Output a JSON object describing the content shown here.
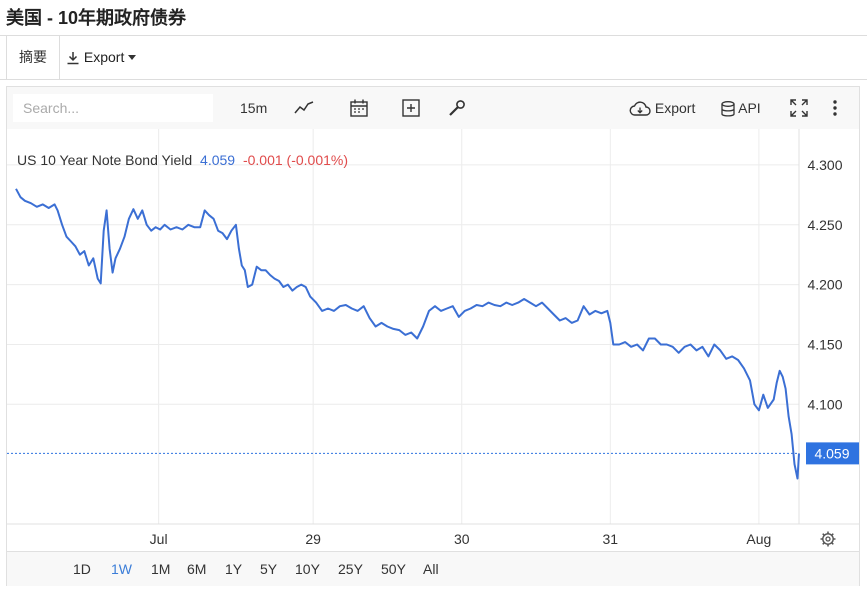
{
  "page": {
    "title": "美国 - 10年期政府债券",
    "tab_summary": "摘要",
    "export_label": "Export"
  },
  "toolbar": {
    "search_placeholder": "Search...",
    "interval": "15m",
    "export_label": "Export",
    "api_label": "API",
    "icons": [
      "line-chart-icon",
      "calendar-icon",
      "plus-box-icon",
      "wrench-icon",
      "cloud-download-icon",
      "database-icon",
      "fullscreen-icon",
      "more-vertical-icon"
    ]
  },
  "legend": {
    "name": "US 10 Year Note Bond Yield",
    "value": "4.059",
    "change": "-0.001 (-0.001%)"
  },
  "colors": {
    "line": "#3b6fd4",
    "value": "#3b6fd4",
    "change": "#e04b4b",
    "price_tag": "#2f73e0"
  },
  "ranges": {
    "items": [
      "1D",
      "1W",
      "1M",
      "6M",
      "1Y",
      "5Y",
      "10Y",
      "25Y",
      "50Y",
      "All"
    ],
    "active": "1W"
  },
  "chart_data": {
    "type": "line",
    "ylim": [
      4.0,
      4.33
    ],
    "yticks": [
      4.3,
      4.25,
      4.2,
      4.15,
      4.1
    ],
    "ytick_labels": [
      "4.300",
      "4.250",
      "4.200",
      "4.150",
      "4.100"
    ],
    "xticks": [
      {
        "label": "Jul",
        "x": 0.96
      },
      {
        "label": "29",
        "x": 2.0
      },
      {
        "label": "30",
        "x": 3.0
      },
      {
        "label": "31",
        "x": 4.0
      },
      {
        "label": "Aug",
        "x": 5.0
      }
    ],
    "xlim": [
      0.0,
      5.27
    ],
    "last_price": 4.059,
    "last_price_label": "4.059",
    "series": [
      {
        "values": [
          [
            0.0,
            4.28
          ],
          [
            0.03,
            4.273
          ],
          [
            0.06,
            4.27
          ],
          [
            0.1,
            4.268
          ],
          [
            0.14,
            4.265
          ],
          [
            0.18,
            4.267
          ],
          [
            0.22,
            4.264
          ],
          [
            0.26,
            4.267
          ],
          [
            0.28,
            4.262
          ],
          [
            0.31,
            4.25
          ],
          [
            0.34,
            4.24
          ],
          [
            0.37,
            4.236
          ],
          [
            0.4,
            4.232
          ],
          [
            0.43,
            4.225
          ],
          [
            0.46,
            4.228
          ],
          [
            0.49,
            4.216
          ],
          [
            0.52,
            4.222
          ],
          [
            0.55,
            4.205
          ],
          [
            0.57,
            4.201
          ],
          [
            0.59,
            4.245
          ],
          [
            0.61,
            4.262
          ],
          [
            0.63,
            4.23
          ],
          [
            0.65,
            4.21
          ],
          [
            0.67,
            4.222
          ],
          [
            0.7,
            4.23
          ],
          [
            0.73,
            4.24
          ],
          [
            0.76,
            4.255
          ],
          [
            0.79,
            4.263
          ],
          [
            0.82,
            4.255
          ],
          [
            0.85,
            4.262
          ],
          [
            0.88,
            4.25
          ],
          [
            0.91,
            4.245
          ],
          [
            0.94,
            4.248
          ],
          [
            0.97,
            4.246
          ],
          [
            1.0,
            4.25
          ],
          [
            1.04,
            4.246
          ],
          [
            1.08,
            4.248
          ],
          [
            1.12,
            4.246
          ],
          [
            1.16,
            4.25
          ],
          [
            1.2,
            4.248
          ],
          [
            1.24,
            4.248
          ],
          [
            1.27,
            4.262
          ],
          [
            1.3,
            4.258
          ],
          [
            1.33,
            4.255
          ],
          [
            1.36,
            4.245
          ],
          [
            1.39,
            4.243
          ],
          [
            1.42,
            4.238
          ],
          [
            1.45,
            4.245
          ],
          [
            1.48,
            4.25
          ],
          [
            1.5,
            4.23
          ],
          [
            1.52,
            4.216
          ],
          [
            1.54,
            4.212
          ],
          [
            1.56,
            4.198
          ],
          [
            1.59,
            4.2
          ],
          [
            1.62,
            4.215
          ],
          [
            1.65,
            4.212
          ],
          [
            1.68,
            4.212
          ],
          [
            1.71,
            4.208
          ],
          [
            1.74,
            4.205
          ],
          [
            1.77,
            4.203
          ],
          [
            1.8,
            4.198
          ],
          [
            1.83,
            4.2
          ],
          [
            1.86,
            4.195
          ],
          [
            1.89,
            4.198
          ],
          [
            1.92,
            4.2
          ],
          [
            1.95,
            4.198
          ],
          [
            1.98,
            4.19
          ],
          [
            2.02,
            4.185
          ],
          [
            2.06,
            4.178
          ],
          [
            2.1,
            4.18
          ],
          [
            2.14,
            4.178
          ],
          [
            2.18,
            4.182
          ],
          [
            2.22,
            4.183
          ],
          [
            2.26,
            4.18
          ],
          [
            2.3,
            4.178
          ],
          [
            2.34,
            4.182
          ],
          [
            2.38,
            4.172
          ],
          [
            2.42,
            4.165
          ],
          [
            2.46,
            4.168
          ],
          [
            2.5,
            4.165
          ],
          [
            2.54,
            4.163
          ],
          [
            2.58,
            4.162
          ],
          [
            2.62,
            4.158
          ],
          [
            2.66,
            4.16
          ],
          [
            2.7,
            4.155
          ],
          [
            2.74,
            4.165
          ],
          [
            2.78,
            4.178
          ],
          [
            2.82,
            4.182
          ],
          [
            2.86,
            4.178
          ],
          [
            2.9,
            4.18
          ],
          [
            2.94,
            4.182
          ],
          [
            2.98,
            4.173
          ],
          [
            3.02,
            4.178
          ],
          [
            3.06,
            4.18
          ],
          [
            3.1,
            4.183
          ],
          [
            3.14,
            4.182
          ],
          [
            3.18,
            4.185
          ],
          [
            3.22,
            4.183
          ],
          [
            3.26,
            4.182
          ],
          [
            3.3,
            4.185
          ],
          [
            3.34,
            4.183
          ],
          [
            3.38,
            4.185
          ],
          [
            3.42,
            4.188
          ],
          [
            3.46,
            4.185
          ],
          [
            3.5,
            4.182
          ],
          [
            3.54,
            4.185
          ],
          [
            3.58,
            4.18
          ],
          [
            3.62,
            4.175
          ],
          [
            3.66,
            4.17
          ],
          [
            3.7,
            4.172
          ],
          [
            3.74,
            4.168
          ],
          [
            3.78,
            4.17
          ],
          [
            3.82,
            4.182
          ],
          [
            3.86,
            4.175
          ],
          [
            3.9,
            4.178
          ],
          [
            3.94,
            4.176
          ],
          [
            3.98,
            4.178
          ],
          [
            4.0,
            4.168
          ],
          [
            4.02,
            4.15
          ],
          [
            4.06,
            4.15
          ],
          [
            4.1,
            4.152
          ],
          [
            4.14,
            4.148
          ],
          [
            4.18,
            4.15
          ],
          [
            4.22,
            4.145
          ],
          [
            4.26,
            4.155
          ],
          [
            4.3,
            4.155
          ],
          [
            4.34,
            4.15
          ],
          [
            4.38,
            4.15
          ],
          [
            4.42,
            4.148
          ],
          [
            4.46,
            4.143
          ],
          [
            4.5,
            4.148
          ],
          [
            4.54,
            4.15
          ],
          [
            4.58,
            4.145
          ],
          [
            4.62,
            4.148
          ],
          [
            4.66,
            4.14
          ],
          [
            4.7,
            4.15
          ],
          [
            4.74,
            4.145
          ],
          [
            4.78,
            4.138
          ],
          [
            4.82,
            4.14
          ],
          [
            4.86,
            4.137
          ],
          [
            4.9,
            4.13
          ],
          [
            4.94,
            4.12
          ],
          [
            4.97,
            4.1
          ],
          [
            5.0,
            4.095
          ],
          [
            5.03,
            4.108
          ],
          [
            5.06,
            4.097
          ],
          [
            5.1,
            4.104
          ],
          [
            5.12,
            4.118
          ],
          [
            5.14,
            4.128
          ],
          [
            5.16,
            4.123
          ],
          [
            5.18,
            4.113
          ],
          [
            5.2,
            4.09
          ],
          [
            5.22,
            4.075
          ],
          [
            5.24,
            4.05
          ],
          [
            5.26,
            4.038
          ],
          [
            5.27,
            4.059
          ]
        ]
      }
    ]
  }
}
